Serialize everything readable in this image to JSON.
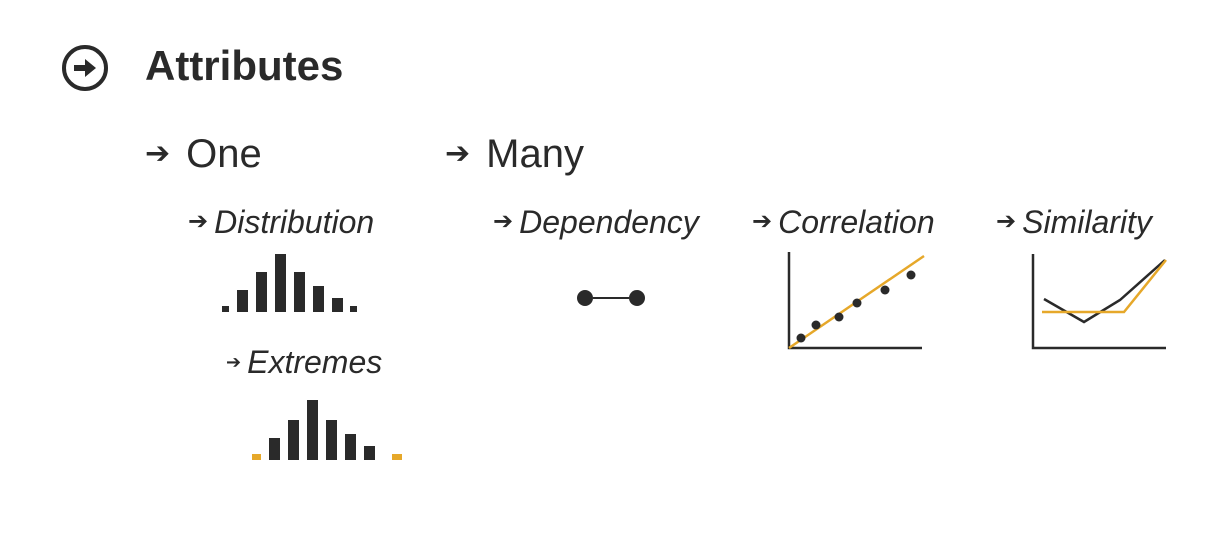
{
  "title": "Attributes",
  "icons": {
    "title": "circled-right-arrow-icon",
    "bullet": "right-arrow-icon"
  },
  "arrow_glyph": "➔",
  "one": {
    "label": "One",
    "items": [
      {
        "label": "Distribution",
        "visual": "histogram-icon"
      },
      {
        "label": "Extremes",
        "visual": "histogram-extremes-icon"
      }
    ]
  },
  "many": {
    "label": "Many",
    "items": [
      {
        "label": "Dependency",
        "visual": "dependency-icon"
      },
      {
        "label": "Correlation",
        "visual": "scatterplot-correlation-icon"
      },
      {
        "label": "Similarity",
        "visual": "line-similarity-icon"
      }
    ]
  },
  "colors": {
    "ink": "#2a2a2a",
    "accent": "#e6a82a"
  }
}
